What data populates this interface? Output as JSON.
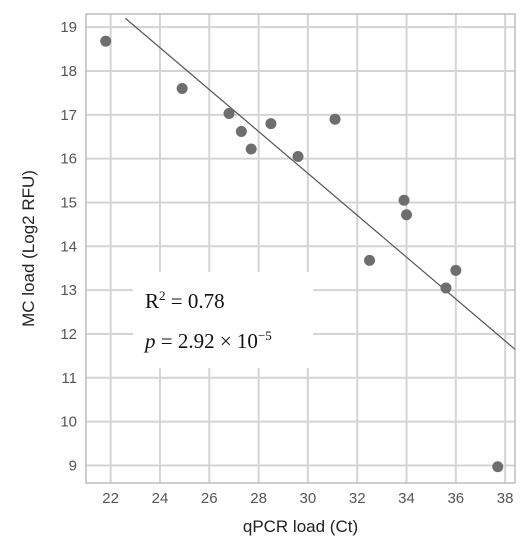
{
  "chart_data": {
    "type": "scatter",
    "title": "",
    "xlabel": "qPCR load (Ct)",
    "ylabel": "MC load (Log2 RFU)",
    "xlim": [
      21,
      38.4
    ],
    "ylim": [
      8.6,
      19.3
    ],
    "x_ticks": [
      "22",
      "24",
      "26",
      "28",
      "30",
      "32",
      "34",
      "36",
      "38"
    ],
    "y_ticks": [
      "9",
      "10",
      "11",
      "12",
      "13",
      "14",
      "15",
      "16",
      "17",
      "18",
      "19"
    ],
    "grid": true,
    "points": [
      {
        "x": 21.8,
        "y": 18.68
      },
      {
        "x": 24.9,
        "y": 17.6
      },
      {
        "x": 26.8,
        "y": 17.03
      },
      {
        "x": 27.3,
        "y": 16.62
      },
      {
        "x": 27.7,
        "y": 16.22
      },
      {
        "x": 28.5,
        "y": 16.8
      },
      {
        "x": 29.6,
        "y": 16.05
      },
      {
        "x": 31.1,
        "y": 16.9
      },
      {
        "x": 32.5,
        "y": 13.68
      },
      {
        "x": 33.9,
        "y": 15.05
      },
      {
        "x": 34.0,
        "y": 14.72
      },
      {
        "x": 35.6,
        "y": 13.05
      },
      {
        "x": 36.0,
        "y": 13.45
      },
      {
        "x": 37.7,
        "y": 8.97
      }
    ],
    "trendline": {
      "x": [
        22.6,
        38.4
      ],
      "y": [
        19.2,
        11.65
      ]
    },
    "annotation": {
      "r2_label": "R",
      "r2_sup": "2",
      "r2_value": " = 0.78",
      "p_label": "p",
      "p_value": " = 2.92 × 10",
      "p_exp": "−5"
    }
  }
}
